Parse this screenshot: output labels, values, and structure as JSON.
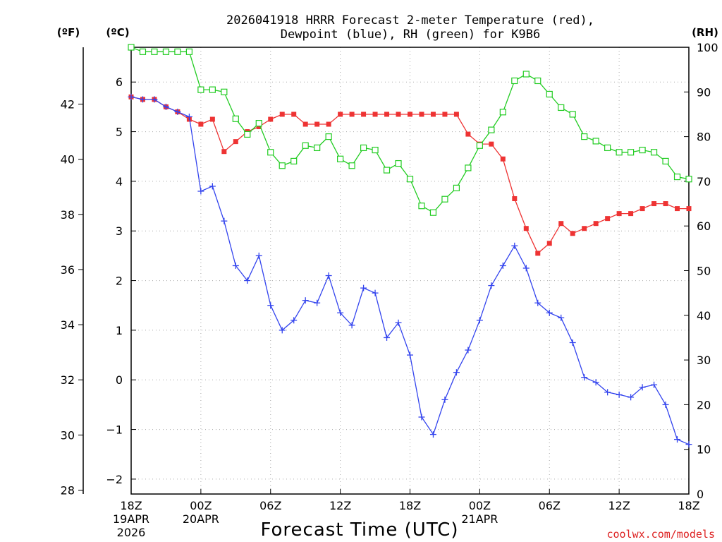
{
  "chart_data": {
    "type": "line",
    "title_line1": "2026041918 HRRR Forecast 2-meter Temperature (red),",
    "title_line2": "Dewpoint (blue), RH (green) for K9B6",
    "xlabel": "Forecast Time (UTC)",
    "credit": "coolwx.com/models",
    "unit_f": "(ºF)",
    "unit_c": "(ºC)",
    "unit_rh": "(RH)",
    "x_range_hours": [
      0,
      48
    ],
    "c_range": [
      -2.3,
      6.7
    ],
    "rh_range": [
      0,
      100
    ],
    "c_ticks": [
      -2,
      -1,
      0,
      1,
      2,
      3,
      4,
      5,
      6
    ],
    "f_ticks": [
      28,
      30,
      32,
      34,
      36,
      38,
      40,
      42
    ],
    "rh_ticks": [
      0,
      10,
      20,
      30,
      40,
      50,
      60,
      70,
      80,
      90,
      100
    ],
    "x_ticks": [
      {
        "hour": 0,
        "lines": [
          "18Z",
          "19APR",
          "2026"
        ]
      },
      {
        "hour": 6,
        "lines": [
          "00Z",
          "20APR"
        ]
      },
      {
        "hour": 12,
        "lines": [
          "06Z"
        ]
      },
      {
        "hour": 18,
        "lines": [
          "12Z"
        ]
      },
      {
        "hour": 24,
        "lines": [
          "18Z"
        ]
      },
      {
        "hour": 30,
        "lines": [
          "00Z",
          "21APR"
        ]
      },
      {
        "hour": 36,
        "lines": [
          "06Z"
        ]
      },
      {
        "hour": 42,
        "lines": [
          "12Z"
        ]
      },
      {
        "hour": 48,
        "lines": [
          "18Z"
        ]
      }
    ],
    "series": [
      {
        "name": "Temperature (°C)",
        "color": "#ee3333",
        "marker": "filled-square",
        "axis": "c",
        "values": [
          5.7,
          5.65,
          5.65,
          5.5,
          5.4,
          5.25,
          5.15,
          5.25,
          4.6,
          4.8,
          5.0,
          5.1,
          5.25,
          5.35,
          5.35,
          5.15,
          5.15,
          5.15,
          5.35,
          5.35,
          5.35,
          5.35,
          5.35,
          5.35,
          5.35,
          5.35,
          5.35,
          5.35,
          5.35,
          4.95,
          4.75,
          4.75,
          4.45,
          3.65,
          3.05,
          2.55,
          2.75,
          3.15,
          2.95,
          3.05,
          3.15,
          3.25,
          3.35,
          3.35,
          3.45,
          3.55,
          3.55,
          3.45,
          3.45
        ]
      },
      {
        "name": "Dewpoint (°C)",
        "color": "#3344ee",
        "marker": "plus",
        "axis": "c",
        "values": [
          5.7,
          5.65,
          5.65,
          5.5,
          5.4,
          5.3,
          3.8,
          3.9,
          3.2,
          2.3,
          2.0,
          2.5,
          1.5,
          1.0,
          1.2,
          1.6,
          1.55,
          2.1,
          1.35,
          1.1,
          1.85,
          1.75,
          0.85,
          1.15,
          0.5,
          -0.75,
          -1.1,
          -0.4,
          0.15,
          0.6,
          1.2,
          1.9,
          2.3,
          2.7,
          2.25,
          1.55,
          1.35,
          1.25,
          0.75,
          0.05,
          -0.05,
          -0.25,
          -0.3,
          -0.35,
          -0.15,
          -0.1,
          -0.5,
          -1.2,
          -1.3
        ]
      },
      {
        "name": "RH (%)",
        "color": "#22cc22",
        "marker": "open-square",
        "axis": "rh",
        "values": [
          100,
          99,
          99,
          99,
          99,
          99,
          90.5,
          90.5,
          90,
          84,
          80.5,
          83,
          76.5,
          73.5,
          74.5,
          78,
          77.5,
          80,
          75,
          73.5,
          77.5,
          77,
          72.5,
          74,
          70.5,
          64.5,
          63,
          66,
          68.5,
          73,
          78,
          81.5,
          85.5,
          92.5,
          94,
          92.5,
          89.5,
          86.5,
          85,
          80,
          79,
          77.5,
          76.5,
          76.5,
          77,
          76.5,
          74.5,
          71,
          70.5
        ]
      }
    ]
  }
}
